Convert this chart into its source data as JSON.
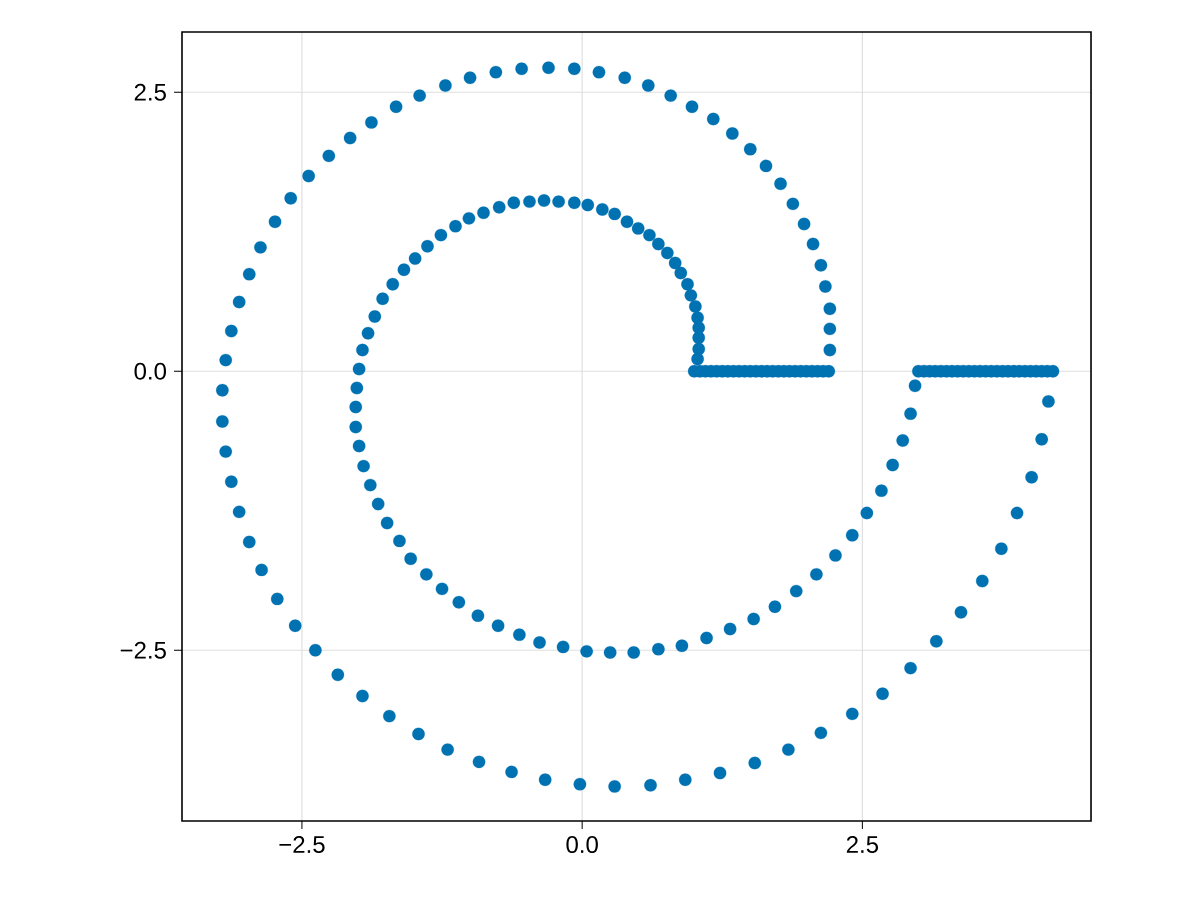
{
  "chart_data": {
    "type": "scatter",
    "color": "#0072b2",
    "marker": "circle",
    "grid": true,
    "xlim": [
      -3.57,
      4.54
    ],
    "ylim": [
      -4.03,
      3.04
    ],
    "xticks": [
      {
        "value": -2.5,
        "label": "−2.5"
      },
      {
        "value": 0,
        "label": "0.0"
      },
      {
        "value": 2.5,
        "label": "2.5"
      }
    ],
    "yticks": [
      {
        "value": -2.5,
        "label": "−2.5"
      },
      {
        "value": 0,
        "label": "0.0"
      },
      {
        "value": 2.5,
        "label": "2.5"
      }
    ],
    "x": [
      1.0,
      1.05,
      1.1,
      1.15,
      1.2,
      1.25,
      1.3,
      1.35,
      1.4,
      1.45,
      1.5,
      1.55,
      1.6,
      1.65,
      1.7,
      1.75,
      1.8,
      1.85,
      1.9,
      1.95,
      2.0,
      2.05,
      2.1,
      2.15,
      2.2,
      1.03,
      1.04,
      1.04,
      1.04,
      1.03,
      1.01,
      0.97,
      0.94,
      0.88,
      0.83,
      0.76,
      0.68,
      0.6,
      0.5,
      0.4,
      0.29,
      0.18,
      0.05,
      -0.07,
      -0.21,
      -0.34,
      -0.47,
      -0.61,
      -0.74,
      -0.88,
      -1.01,
      -1.13,
      -1.26,
      -1.38,
      -1.49,
      -1.59,
      -1.69,
      -1.78,
      -1.85,
      -1.91,
      -1.96,
      -1.99,
      -2.01,
      -2.02,
      -2.02,
      -1.99,
      -1.95,
      -1.89,
      -1.82,
      -1.74,
      -1.63,
      -1.53,
      -1.39,
      -1.25,
      -1.1,
      -0.93,
      -0.75,
      -0.56,
      -0.38,
      -0.17,
      0.04,
      0.25,
      0.46,
      0.68,
      0.89,
      1.11,
      1.32,
      1.53,
      1.72,
      1.91,
      2.09,
      2.26,
      2.41,
      2.54,
      2.67,
      2.77,
      2.86,
      2.93,
      2.97,
      3.0,
      3.05,
      3.1,
      3.15,
      3.2,
      3.25,
      3.3,
      3.35,
      3.4,
      3.45,
      3.5,
      3.55,
      3.6,
      3.65,
      3.7,
      3.75,
      3.8,
      3.85,
      3.9,
      3.95,
      4.0,
      4.05,
      4.1,
      4.15,
      4.2,
      4.16,
      4.1,
      4.01,
      3.88,
      3.74,
      3.57,
      3.38,
      3.16,
      2.93,
      2.68,
      2.41,
      2.13,
      1.84,
      1.54,
      1.23,
      0.92,
      0.61,
      0.29,
      -0.02,
      -0.33,
      -0.63,
      -0.92,
      -1.2,
      -1.46,
      -1.72,
      -1.96,
      -2.18,
      -2.38,
      -2.56,
      -2.72,
      -2.86,
      -2.97,
      -3.06,
      -3.13,
      -3.18,
      -3.21,
      -3.21,
      -3.18,
      -3.13,
      -3.06,
      -2.97,
      -2.87,
      -2.74,
      -2.6,
      -2.44,
      -2.26,
      -2.07,
      -1.88,
      -1.66,
      -1.45,
      -1.22,
      -1.0,
      -0.77,
      -0.54,
      -0.3,
      -0.07,
      0.15,
      0.38,
      0.59,
      0.79,
      0.98,
      1.17,
      1.34,
      1.5,
      1.64,
      1.77,
      1.88,
      1.98,
      2.06,
      2.13,
      2.17,
      2.21,
      2.21,
      2.21
    ],
    "values": [
      0,
      0,
      0,
      0,
      0,
      0,
      0,
      0,
      0,
      0,
      0,
      0,
      0,
      0,
      0,
      0,
      0,
      0,
      0,
      0,
      0,
      0,
      0,
      0,
      0,
      0.11,
      0.2,
      0.3,
      0.39,
      0.48,
      0.58,
      0.68,
      0.78,
      0.88,
      0.97,
      1.06,
      1.14,
      1.22,
      1.28,
      1.34,
      1.41,
      1.45,
      1.49,
      1.51,
      1.52,
      1.53,
      1.52,
      1.51,
      1.47,
      1.42,
      1.37,
      1.3,
      1.22,
      1.12,
      1.01,
      0.91,
      0.78,
      0.65,
      0.49,
      0.34,
      0.19,
      0.02,
      -0.15,
      -0.32,
      -0.5,
      -0.67,
      -0.85,
      -1.02,
      -1.19,
      -1.36,
      -1.52,
      -1.68,
      -1.82,
      -1.95,
      -2.07,
      -2.19,
      -2.28,
      -2.36,
      -2.43,
      -2.47,
      -2.51,
      -2.52,
      -2.52,
      -2.49,
      -2.46,
      -2.39,
      -2.31,
      -2.22,
      -2.11,
      -1.97,
      -1.82,
      -1.65,
      -1.47,
      -1.27,
      -1.07,
      -0.84,
      -0.62,
      -0.38,
      -0.13,
      0,
      0,
      0,
      0,
      0,
      0,
      0,
      0,
      0,
      0,
      0,
      0,
      0,
      0,
      0,
      0,
      0,
      0,
      0,
      0,
      0,
      0,
      0,
      0,
      0,
      -0.27,
      -0.61,
      -0.95,
      -1.27,
      -1.59,
      -1.88,
      -2.16,
      -2.42,
      -2.66,
      -2.89,
      -3.07,
      -3.24,
      -3.39,
      -3.51,
      -3.6,
      -3.66,
      -3.71,
      -3.72,
      -3.7,
      -3.66,
      -3.59,
      -3.5,
      -3.39,
      -3.25,
      -3.09,
      -2.91,
      -2.72,
      -2.5,
      -2.28,
      -2.04,
      -1.78,
      -1.53,
      -1.26,
      -0.99,
      -0.72,
      -0.45,
      -0.17,
      0.1,
      0.36,
      0.62,
      0.87,
      1.11,
      1.34,
      1.55,
      1.75,
      1.93,
      2.09,
      2.23,
      2.37,
      2.47,
      2.56,
      2.63,
      2.68,
      2.71,
      2.72,
      2.71,
      2.68,
      2.63,
      2.56,
      2.47,
      2.37,
      2.26,
      2.13,
      1.99,
      1.84,
      1.68,
      1.5,
      1.32,
      1.14,
      0.95,
      0.76,
      0.56,
      0.38,
      0.19
    ]
  }
}
